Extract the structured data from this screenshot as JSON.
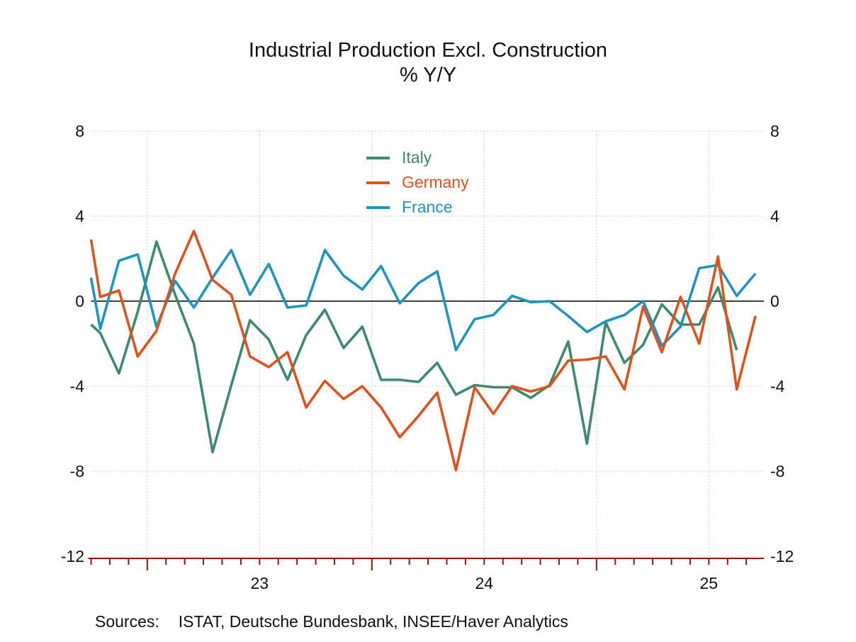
{
  "title": {
    "line1": "Industrial Production Excl. Construction",
    "line2": "% Y/Y"
  },
  "source_note": {
    "label": "Sources:",
    "text": "ISTAT, Deutsche Bundesbank, INSEE/Haver Analytics"
  },
  "chart_data": {
    "type": "line",
    "title": "Industrial Production Excl. Construction",
    "subtitle": "% Y/Y",
    "x_unit": "month",
    "months": [
      "Sep 22",
      "Oct 22",
      "Nov 22",
      "Dec 22",
      "Jan 23",
      "Feb 23",
      "Mar 23",
      "Apr 23",
      "May 23",
      "Jun 23",
      "Jul 23",
      "Aug 23",
      "Sep 23",
      "Oct 23",
      "Nov 23",
      "Dec 23",
      "Jan 24",
      "Feb 24",
      "Mar 24",
      "Apr 24",
      "May 24",
      "Jun 24",
      "Jul 24",
      "Aug 24",
      "Sep 24",
      "Oct 24",
      "Nov 24",
      "Dec 24",
      "Jan 25",
      "Feb 25",
      "Mar 25",
      "Apr 25",
      "May 25",
      "Jun 25",
      "Jul 25",
      "Aug 25",
      "Sep 25"
    ],
    "series": [
      {
        "name": "Italy",
        "color": "#3E8A6C",
        "values": [
          -1.1,
          -1.5,
          -3.4,
          -0.5,
          2.8,
          0.3,
          -2.0,
          -7.1,
          -3.95,
          -0.9,
          -1.8,
          -3.7,
          -1.6,
          -0.4,
          -2.2,
          -1.2,
          -3.7,
          -3.7,
          -3.8,
          -2.9,
          -4.4,
          -3.95,
          -4.05,
          -4.05,
          -4.55,
          -3.95,
          -1.9,
          -6.7,
          -1.0,
          -2.9,
          -2.05,
          -0.15,
          -1.1,
          -1.1,
          0.65,
          -2.3
        ]
      },
      {
        "name": "Germany",
        "color": "#DF521E",
        "values": [
          2.9,
          0.2,
          0.5,
          -2.6,
          -1.4,
          1.3,
          3.3,
          1.0,
          0.3,
          -2.6,
          -3.1,
          -2.4,
          -5.0,
          -3.75,
          -4.6,
          -4.0,
          -5.0,
          -6.4,
          -5.4,
          -4.3,
          -7.95,
          -4.05,
          -5.3,
          -4.0,
          -4.25,
          -4.0,
          -2.8,
          -2.75,
          -2.6,
          -4.15,
          -0.25,
          -2.4,
          0.2,
          -2.0,
          2.1,
          -4.15,
          -0.7
        ]
      },
      {
        "name": "France",
        "color": "#1E94BE",
        "values": [
          1.1,
          -1.3,
          1.9,
          2.2,
          -1.2,
          0.95,
          -0.3,
          1.1,
          2.4,
          0.3,
          1.75,
          -0.3,
          -0.2,
          2.4,
          1.2,
          0.55,
          1.65,
          -0.1,
          0.85,
          1.4,
          -2.3,
          -0.85,
          -0.65,
          0.25,
          -0.05,
          0.0,
          -0.7,
          -1.45,
          -0.95,
          -0.65,
          0.0,
          -2.1,
          -1.2,
          1.55,
          1.7,
          0.25,
          1.3
        ]
      }
    ],
    "ylim": [
      -12,
      8
    ],
    "y_ticks": [
      8,
      4,
      0,
      -4,
      -8,
      -12
    ],
    "x_year_labels": [
      "23",
      "24",
      "25"
    ],
    "grid": "dotted gridlines; horizontal at y ticks, vertical every 6 months; solid black zero line",
    "legend_position": "top-center-inside",
    "axis_color": "#8A1A10",
    "gridline_color": "#c9c9c9",
    "note": "monthly data; first point (Sep 22) clipped at left plot edge; Italy ends Aug 25"
  }
}
